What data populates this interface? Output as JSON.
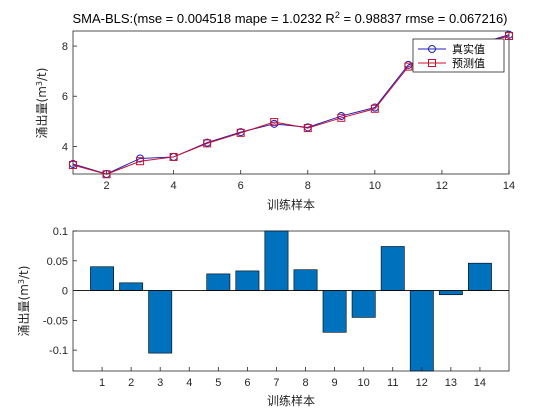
{
  "chart_data": [
    {
      "type": "line",
      "title": "SMA-BLS:(mse = 0.004518 mape = 1.0232  R",
      "title_sup": "2",
      "title_rest": " = 0.98837 rmse = 0.067216)",
      "xlabel": "训练样本",
      "ylabel_main": "涌出量(m",
      "ylabel_sup": "3",
      "ylabel_end": "/t)",
      "x": [
        1,
        2,
        3,
        4,
        5,
        6,
        7,
        8,
        9,
        10,
        11,
        12,
        13,
        14
      ],
      "xlim": [
        1,
        14
      ],
      "ylim": [
        2.9,
        8.6
      ],
      "xticks": [
        "2",
        "4",
        "6",
        "8",
        "10",
        "12",
        "14"
      ],
      "yticks": [
        "4",
        "6",
        "8"
      ],
      "legend_position": "top-right",
      "series": [
        {
          "name": "真实值",
          "color": "#1f1fbf",
          "marker": "circle",
          "values": [
            3.3,
            2.9,
            3.52,
            3.58,
            4.15,
            4.57,
            4.9,
            4.76,
            5.21,
            5.55,
            7.25,
            7.65,
            8.05,
            8.45
          ]
        },
        {
          "name": "预测值",
          "color": "#c8102e",
          "marker": "square",
          "values": [
            3.26,
            2.89,
            3.41,
            3.58,
            4.12,
            4.54,
            4.97,
            4.73,
            5.14,
            5.5,
            7.18,
            7.66,
            8.06,
            8.4
          ]
        }
      ]
    },
    {
      "type": "bar",
      "xlabel": "训练样本",
      "ylabel_main": "涌出量(m",
      "ylabel_sup": "3",
      "ylabel_end": "/t)",
      "categories": [
        "1",
        "2",
        "3",
        "4",
        "5",
        "6",
        "7",
        "8",
        "9",
        "10",
        "11",
        "12",
        "13",
        "14"
      ],
      "values": [
        0.04,
        0.013,
        -0.105,
        0.0,
        0.028,
        0.033,
        0.1,
        0.035,
        -0.07,
        -0.045,
        0.074,
        -0.135,
        -0.007,
        0.046
      ],
      "ylim": [
        -0.135,
        0.1
      ],
      "yticks": [
        "-0.1",
        "-0.05",
        "0",
        "0.05",
        "0.1"
      ],
      "color": "#0072bd"
    }
  ]
}
